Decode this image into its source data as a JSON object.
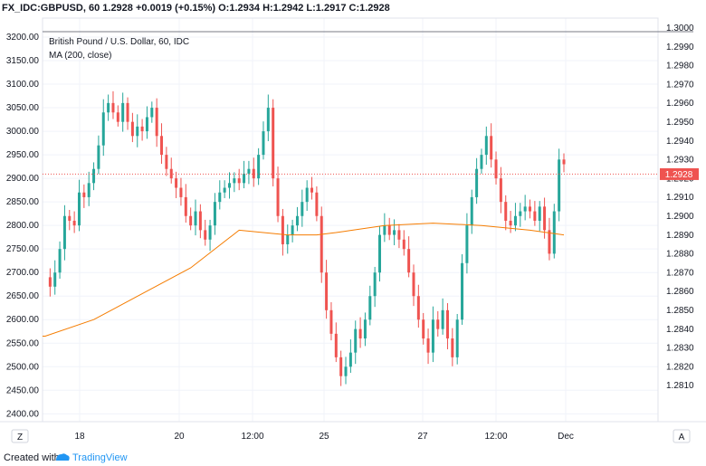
{
  "header": {
    "symbol": "FX_IDC:GBPUSD, 60",
    "last": "1.2928",
    "change": "+0.0019 (+0.15%)",
    "open_label": "O:",
    "open": "1.2934",
    "high_label": "H:",
    "high": "1.2942",
    "low_label": "L:",
    "low": "1.2917",
    "close_label": "C:",
    "close": "1.2928"
  },
  "legend": {
    "title": "British Pound / U.S. Dollar, 60, IDC",
    "ma": "MA (200, close)"
  },
  "footer": {
    "created_with": "Created with",
    "brand": "TradingView"
  },
  "buttons": {
    "left": "Z",
    "right": "A"
  },
  "colors": {
    "up": "#26a69a",
    "down": "#ef5350",
    "ma": "#f57c00",
    "price_line": "#ef5350",
    "grid": "#f0f3fa"
  },
  "chart_data": {
    "type": "candlestick",
    "title": "British Pound / U.S. Dollar, 60, IDC",
    "x_ticks": [
      "18",
      "20",
      "12:00",
      "25",
      "27",
      "12:00",
      "Dec"
    ],
    "left_axis": {
      "ticks": [
        "3200.00",
        "3150.00",
        "3100.00",
        "3050.00",
        "3000.00",
        "2950.00",
        "2900.00",
        "2850.00",
        "2800.00",
        "2750.00",
        "2700.00",
        "2650.00",
        "2600.00",
        "2550.00",
        "2500.00",
        "2450.00",
        "2400.00"
      ],
      "range": [
        2385,
        3215
      ]
    },
    "right_axis": {
      "ticks": [
        "1.3000",
        "1.2990",
        "1.2980",
        "1.2970",
        "1.2960",
        "1.2950",
        "1.2940",
        "1.2930",
        "1.2920",
        "1.2910",
        "1.2900",
        "1.2890",
        "1.2880",
        "1.2870",
        "1.2860",
        "1.2850",
        "1.2840",
        "1.2830",
        "1.2820",
        "1.2810"
      ],
      "current_price": "1.2928"
    },
    "close_path": [
      2690,
      2670,
      2700,
      2750,
      2820,
      2810,
      2800,
      2870,
      2860,
      2890,
      2920,
      2970,
      3040,
      3060,
      3040,
      3020,
      3060,
      3020,
      2990,
      3010,
      3000,
      3030,
      3050,
      2990,
      2950,
      2920,
      2900,
      2880,
      2860,
      2820,
      2800,
      2830,
      2790,
      2770,
      2800,
      2850,
      2870,
      2880,
      2890,
      2900,
      2890,
      2910,
      2920,
      2900,
      2950,
      3000,
      3050,
      2900,
      2820,
      2760,
      2780,
      2800,
      2820,
      2850,
      2880,
      2870,
      2820,
      2700,
      2620,
      2570,
      2520,
      2480,
      2500,
      2530,
      2580,
      2560,
      2600,
      2650,
      2700,
      2780,
      2800,
      2780,
      2790,
      2770,
      2750,
      2700,
      2650,
      2600,
      2560,
      2530,
      2600,
      2580,
      2620,
      2560,
      2520,
      2600,
      2720,
      2800,
      2860,
      2920,
      2950,
      2990,
      2940,
      2900,
      2850,
      2810,
      2800,
      2820,
      2830,
      2840,
      2830,
      2810,
      2840,
      2790,
      2740,
      2830,
      2940,
      2930
    ],
    "ma_series": [
      {
        "name": "MA (200, close)",
        "x": [
          0,
          10,
          20,
          30,
          40,
          50,
          56,
          60,
          70,
          80,
          90,
          100,
          107
        ],
        "values": [
          2565,
          2600,
          2655,
          2710,
          2790,
          2780,
          2780,
          2785,
          2800,
          2805,
          2800,
          2790,
          2780
        ]
      }
    ]
  }
}
